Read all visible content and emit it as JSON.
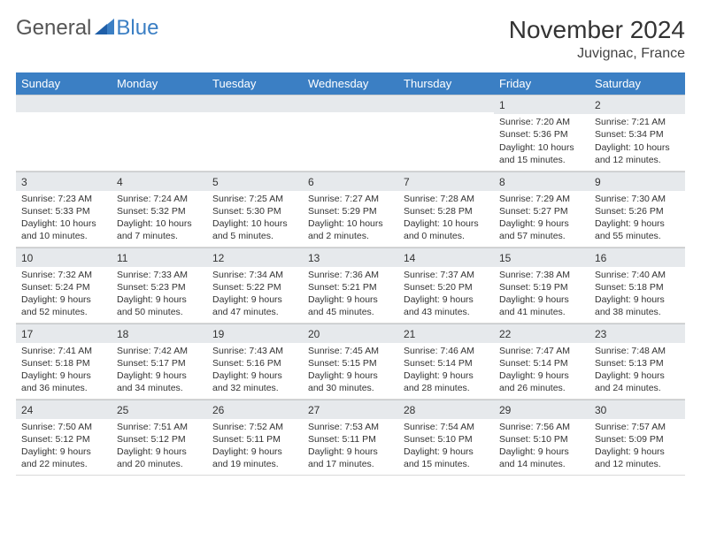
{
  "logo": {
    "text1": "General",
    "text2": "Blue"
  },
  "title": "November 2024",
  "location": "Juvignac, France",
  "colors": {
    "header_bg": "#3b7fc4",
    "header_fg": "#ffffff",
    "band_bg": "#e6e9ec",
    "border": "#d9d9d9",
    "text": "#333333"
  },
  "daynames": [
    "Sunday",
    "Monday",
    "Tuesday",
    "Wednesday",
    "Thursday",
    "Friday",
    "Saturday"
  ],
  "weeks": [
    [
      null,
      null,
      null,
      null,
      null,
      {
        "n": "1",
        "sunrise": "Sunrise: 7:20 AM",
        "sunset": "Sunset: 5:36 PM",
        "daylight": "Daylight: 10 hours and 15 minutes."
      },
      {
        "n": "2",
        "sunrise": "Sunrise: 7:21 AM",
        "sunset": "Sunset: 5:34 PM",
        "daylight": "Daylight: 10 hours and 12 minutes."
      }
    ],
    [
      {
        "n": "3",
        "sunrise": "Sunrise: 7:23 AM",
        "sunset": "Sunset: 5:33 PM",
        "daylight": "Daylight: 10 hours and 10 minutes."
      },
      {
        "n": "4",
        "sunrise": "Sunrise: 7:24 AM",
        "sunset": "Sunset: 5:32 PM",
        "daylight": "Daylight: 10 hours and 7 minutes."
      },
      {
        "n": "5",
        "sunrise": "Sunrise: 7:25 AM",
        "sunset": "Sunset: 5:30 PM",
        "daylight": "Daylight: 10 hours and 5 minutes."
      },
      {
        "n": "6",
        "sunrise": "Sunrise: 7:27 AM",
        "sunset": "Sunset: 5:29 PM",
        "daylight": "Daylight: 10 hours and 2 minutes."
      },
      {
        "n": "7",
        "sunrise": "Sunrise: 7:28 AM",
        "sunset": "Sunset: 5:28 PM",
        "daylight": "Daylight: 10 hours and 0 minutes."
      },
      {
        "n": "8",
        "sunrise": "Sunrise: 7:29 AM",
        "sunset": "Sunset: 5:27 PM",
        "daylight": "Daylight: 9 hours and 57 minutes."
      },
      {
        "n": "9",
        "sunrise": "Sunrise: 7:30 AM",
        "sunset": "Sunset: 5:26 PM",
        "daylight": "Daylight: 9 hours and 55 minutes."
      }
    ],
    [
      {
        "n": "10",
        "sunrise": "Sunrise: 7:32 AM",
        "sunset": "Sunset: 5:24 PM",
        "daylight": "Daylight: 9 hours and 52 minutes."
      },
      {
        "n": "11",
        "sunrise": "Sunrise: 7:33 AM",
        "sunset": "Sunset: 5:23 PM",
        "daylight": "Daylight: 9 hours and 50 minutes."
      },
      {
        "n": "12",
        "sunrise": "Sunrise: 7:34 AM",
        "sunset": "Sunset: 5:22 PM",
        "daylight": "Daylight: 9 hours and 47 minutes."
      },
      {
        "n": "13",
        "sunrise": "Sunrise: 7:36 AM",
        "sunset": "Sunset: 5:21 PM",
        "daylight": "Daylight: 9 hours and 45 minutes."
      },
      {
        "n": "14",
        "sunrise": "Sunrise: 7:37 AM",
        "sunset": "Sunset: 5:20 PM",
        "daylight": "Daylight: 9 hours and 43 minutes."
      },
      {
        "n": "15",
        "sunrise": "Sunrise: 7:38 AM",
        "sunset": "Sunset: 5:19 PM",
        "daylight": "Daylight: 9 hours and 41 minutes."
      },
      {
        "n": "16",
        "sunrise": "Sunrise: 7:40 AM",
        "sunset": "Sunset: 5:18 PM",
        "daylight": "Daylight: 9 hours and 38 minutes."
      }
    ],
    [
      {
        "n": "17",
        "sunrise": "Sunrise: 7:41 AM",
        "sunset": "Sunset: 5:18 PM",
        "daylight": "Daylight: 9 hours and 36 minutes."
      },
      {
        "n": "18",
        "sunrise": "Sunrise: 7:42 AM",
        "sunset": "Sunset: 5:17 PM",
        "daylight": "Daylight: 9 hours and 34 minutes."
      },
      {
        "n": "19",
        "sunrise": "Sunrise: 7:43 AM",
        "sunset": "Sunset: 5:16 PM",
        "daylight": "Daylight: 9 hours and 32 minutes."
      },
      {
        "n": "20",
        "sunrise": "Sunrise: 7:45 AM",
        "sunset": "Sunset: 5:15 PM",
        "daylight": "Daylight: 9 hours and 30 minutes."
      },
      {
        "n": "21",
        "sunrise": "Sunrise: 7:46 AM",
        "sunset": "Sunset: 5:14 PM",
        "daylight": "Daylight: 9 hours and 28 minutes."
      },
      {
        "n": "22",
        "sunrise": "Sunrise: 7:47 AM",
        "sunset": "Sunset: 5:14 PM",
        "daylight": "Daylight: 9 hours and 26 minutes."
      },
      {
        "n": "23",
        "sunrise": "Sunrise: 7:48 AM",
        "sunset": "Sunset: 5:13 PM",
        "daylight": "Daylight: 9 hours and 24 minutes."
      }
    ],
    [
      {
        "n": "24",
        "sunrise": "Sunrise: 7:50 AM",
        "sunset": "Sunset: 5:12 PM",
        "daylight": "Daylight: 9 hours and 22 minutes."
      },
      {
        "n": "25",
        "sunrise": "Sunrise: 7:51 AM",
        "sunset": "Sunset: 5:12 PM",
        "daylight": "Daylight: 9 hours and 20 minutes."
      },
      {
        "n": "26",
        "sunrise": "Sunrise: 7:52 AM",
        "sunset": "Sunset: 5:11 PM",
        "daylight": "Daylight: 9 hours and 19 minutes."
      },
      {
        "n": "27",
        "sunrise": "Sunrise: 7:53 AM",
        "sunset": "Sunset: 5:11 PM",
        "daylight": "Daylight: 9 hours and 17 minutes."
      },
      {
        "n": "28",
        "sunrise": "Sunrise: 7:54 AM",
        "sunset": "Sunset: 5:10 PM",
        "daylight": "Daylight: 9 hours and 15 minutes."
      },
      {
        "n": "29",
        "sunrise": "Sunrise: 7:56 AM",
        "sunset": "Sunset: 5:10 PM",
        "daylight": "Daylight: 9 hours and 14 minutes."
      },
      {
        "n": "30",
        "sunrise": "Sunrise: 7:57 AM",
        "sunset": "Sunset: 5:09 PM",
        "daylight": "Daylight: 9 hours and 12 minutes."
      }
    ]
  ]
}
